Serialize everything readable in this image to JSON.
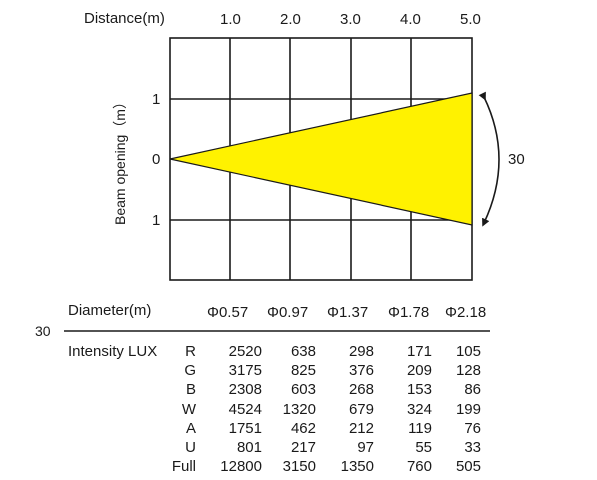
{
  "diagram": {
    "distance_label": "Distance(m)",
    "distance_ticks": [
      "1.0",
      "2.0",
      "3.0",
      "4.0",
      "5.0"
    ],
    "beam_label": "Beam opening（m）",
    "beam_ticks": [
      "1",
      "0",
      "1"
    ],
    "angle_label": "30",
    "beam_color": "#fff200",
    "max_opening_m": 1.09,
    "max_distance_m": 5.0
  },
  "table": {
    "angle_label": "30",
    "diameter_label": "Diameter(m)",
    "diameters": [
      "Φ0.57",
      "Φ0.97",
      "Φ1.37",
      "Φ1.78",
      "Φ2.18"
    ],
    "intensity_label": "Intensity LUX",
    "rows": [
      {
        "channel": "R",
        "values": [
          "2520",
          "638",
          "298",
          "171",
          "105"
        ]
      },
      {
        "channel": "G",
        "values": [
          "3175",
          "825",
          "376",
          "209",
          "128"
        ]
      },
      {
        "channel": "B",
        "values": [
          "2308",
          "603",
          "268",
          "153",
          "86"
        ]
      },
      {
        "channel": "W",
        "values": [
          "4524",
          "1320",
          "679",
          "324",
          "199"
        ]
      },
      {
        "channel": "A",
        "values": [
          "1751",
          "462",
          "212",
          "119",
          "76"
        ]
      },
      {
        "channel": "U",
        "values": [
          "801",
          "217",
          "97",
          "55",
          "33"
        ]
      },
      {
        "channel": "Full",
        "values": [
          "12800",
          "3150",
          "1350",
          "760",
          "505"
        ]
      }
    ]
  }
}
